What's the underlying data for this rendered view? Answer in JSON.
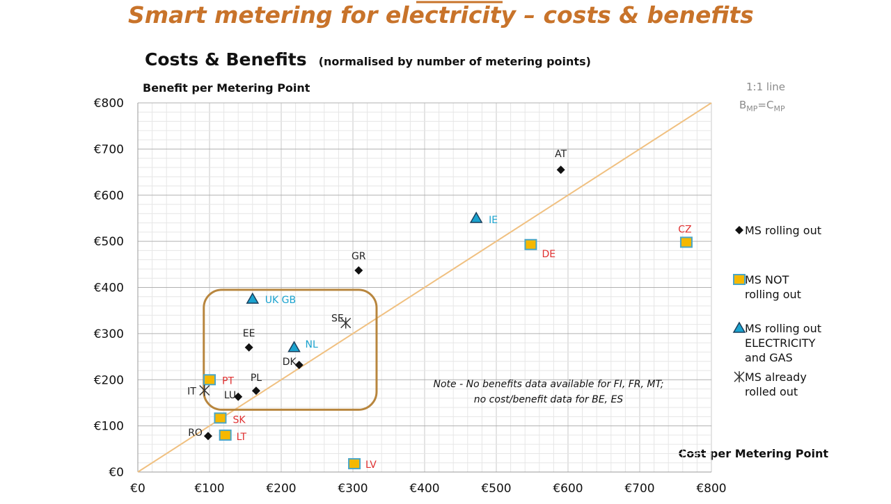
{
  "slide_title": "Smart metering for electricity – costs & benefits",
  "chart_data": {
    "type": "scatter",
    "title": "Costs & Benefits",
    "subtitle": "(normalised by number of metering points)",
    "xlabel": "Cost per Metering Point",
    "ylabel": "Benefit per Metering Point",
    "xlim": [
      0,
      800
    ],
    "ylim": [
      0,
      800
    ],
    "x_ticks": [
      0,
      100,
      200,
      300,
      400,
      500,
      600,
      700,
      800
    ],
    "y_ticks": [
      0,
      100,
      200,
      300,
      400,
      500,
      600,
      700,
      800
    ],
    "x_tick_labels": [
      "€0",
      "€100",
      "€200",
      "€300",
      "€400",
      "€500",
      "€600",
      "€700",
      "€800"
    ],
    "y_tick_labels": [
      "€0",
      "€100",
      "€200",
      "€300",
      "€400",
      "€500",
      "€600",
      "€700",
      "€800"
    ],
    "grid": true,
    "reference_line": {
      "label": "1:1 line",
      "formula": {
        "b": "B",
        "b_sub": "MP",
        "eq": "=",
        "c": "C",
        "c_sub": "MP"
      },
      "from": [
        0,
        0
      ],
      "to": [
        800,
        800
      ],
      "color": "#f0c080"
    },
    "series": [
      {
        "name": "MS rolling out",
        "marker": "diamond",
        "color": "#111111",
        "label_color": "#222222",
        "points": [
          {
            "label": "AT",
            "x": 590,
            "y": 655
          },
          {
            "label": "GR",
            "x": 308,
            "y": 437
          },
          {
            "label": "EE",
            "x": 155,
            "y": 270
          },
          {
            "label": "DK",
            "x": 225,
            "y": 232
          },
          {
            "label": "PL",
            "x": 165,
            "y": 176
          },
          {
            "label": "LU",
            "x": 140,
            "y": 163
          },
          {
            "label": "RO",
            "x": 98,
            "y": 78
          }
        ]
      },
      {
        "name": "MS NOT rolling out",
        "marker": "square",
        "color": "#f5b800",
        "label_color": "#e03030",
        "points": [
          {
            "label": "CZ",
            "x": 765,
            "y": 498
          },
          {
            "label": "DE",
            "x": 548,
            "y": 493
          },
          {
            "label": "PT",
            "x": 100,
            "y": 200
          },
          {
            "label": "SK",
            "x": 115,
            "y": 117
          },
          {
            "label": "LT",
            "x": 122,
            "y": 80
          },
          {
            "label": "LV",
            "x": 302,
            "y": 18
          }
        ]
      },
      {
        "name": "MS rolling out ELECTRICITY and GAS",
        "marker": "triangle",
        "color": "#1ba3cf",
        "label_color": "#1ba3cf",
        "points": [
          {
            "label": "IE",
            "x": 472,
            "y": 550
          },
          {
            "label": "UK GB",
            "x": 160,
            "y": 375
          },
          {
            "label": "NL",
            "x": 218,
            "y": 270
          }
        ]
      },
      {
        "name": "MS already rolled out",
        "marker": "cross",
        "color": "#333333",
        "label_color": "#222222",
        "points": [
          {
            "label": "SE",
            "x": 290,
            "y": 323
          },
          {
            "label": "IT",
            "x": 93,
            "y": 177
          }
        ]
      }
    ],
    "highlight_box": {
      "x_range": [
        92,
        333
      ],
      "y_range": [
        135,
        395
      ],
      "color": "#b8863e"
    },
    "legend": {
      "placement": "right",
      "items": [
        {
          "marker": "diamond",
          "lines": [
            "MS rolling out"
          ]
        },
        {
          "marker": "square",
          "lines": [
            "MS NOT",
            "rolling out"
          ]
        },
        {
          "marker": "triangle",
          "lines": [
            "MS rolling out",
            "ELECTRICITY",
            "and GAS"
          ]
        },
        {
          "marker": "cross",
          "lines": [
            "MS already",
            "rolled out"
          ]
        }
      ]
    },
    "note": [
      "Note - No benefits data available for FI, FR, MT;",
      "no cost/benefit data for BE, ES"
    ]
  }
}
